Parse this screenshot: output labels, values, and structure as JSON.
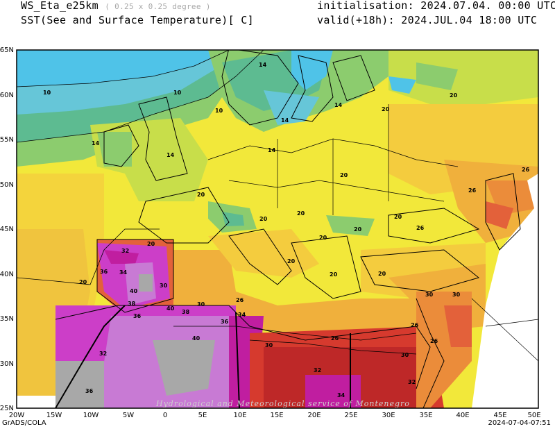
{
  "header": {
    "model": "WS_Eta_e25km",
    "resolution": "( 0.25 x 0.25 degree )",
    "field": "SST(See and Surface Temperature)[ C]",
    "init": "initialisation: 2024.07.04. 00:00 UTC",
    "valid": "valid(+18h): 2024.JUL.04 18:00 UTC"
  },
  "axes": {
    "lat": [
      "65N",
      "60N",
      "55N",
      "50N",
      "45N",
      "40N",
      "35N",
      "30N",
      "25N"
    ],
    "lon": [
      "20W",
      "15W",
      "10W",
      "5W",
      "0",
      "5E",
      "10E",
      "15E",
      "20E",
      "25E",
      "30E",
      "35E",
      "40E",
      "45E",
      "50E"
    ]
  },
  "contour_labels": [
    "10",
    "10",
    "10",
    "14",
    "14",
    "14",
    "14",
    "14",
    "14",
    "20",
    "20",
    "20",
    "20",
    "20",
    "20",
    "20",
    "20",
    "20",
    "20",
    "20",
    "20",
    "26",
    "26",
    "26",
    "26",
    "26",
    "26",
    "26",
    "30",
    "30",
    "30",
    "30",
    "30",
    "30",
    "32",
    "32",
    "32",
    "32",
    "34",
    "34",
    "34",
    "36",
    "36",
    "36",
    "36",
    "38",
    "38",
    "40",
    "40",
    "40",
    "20",
    "20"
  ],
  "watermark": "Hydrological and Meteorological service of Montenegro",
  "footer": {
    "left": "GrADS/COLA",
    "right": "2024-07-04-07:51"
  },
  "colors": {
    "t10": "#4fc3e8",
    "t12": "#66c6d8",
    "t14": "#5dbb91",
    "t16": "#8ccc6e",
    "t18": "#c8de4a",
    "t20": "#f2e83a",
    "t22": "#f4cc3e",
    "t24": "#f0b03c",
    "t26": "#eb8c3a",
    "t28": "#e3613a",
    "t30": "#d63a2e",
    "t32": "#be2828",
    "t34": "#c01ea0",
    "t36": "#cc3ec8",
    "t38": "#c87ad4",
    "t40": "#a8a8a8"
  }
}
